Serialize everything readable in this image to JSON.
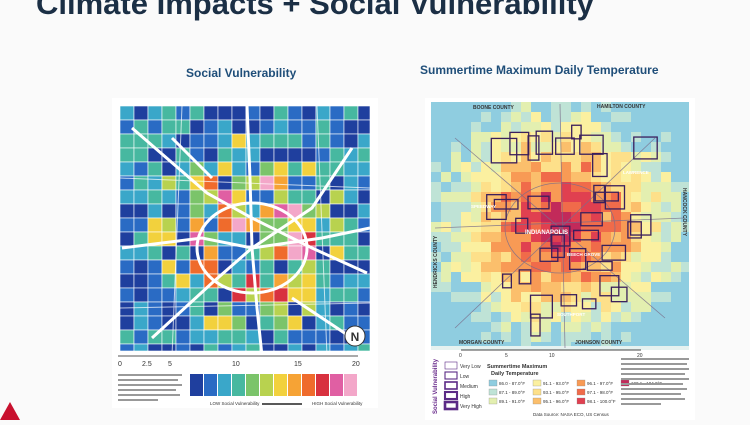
{
  "slide": {
    "title": "Climate Impacts + Social Vulnerability",
    "accent_color": "#c8102e"
  },
  "left_map": {
    "title": "Social Vulnerability",
    "scale_ticks": [
      "0",
      "2.5",
      "5",
      "10",
      "15",
      "20"
    ],
    "legend_low": "LOW Social Vulnerability",
    "legend_high": "HIGH Social Vulnerability",
    "legend_colors": [
      "#1f3f9e",
      "#2a6bc4",
      "#3aa7c9",
      "#47b8a0",
      "#7bc46a",
      "#b8d24f",
      "#f2d13d",
      "#f6a335",
      "#ef6b2c",
      "#d8313f",
      "#e05fa3",
      "#f3a7c9"
    ],
    "compass_icon": "north-arrow-icon"
  },
  "right_map": {
    "title": "Summertime Maximum Daily Temperature",
    "labels": {
      "top_left": "BOONE COUNTY",
      "top_right": "HAMILTON COUNTY",
      "right": "HANCOCK COUNTY",
      "left": "HENDRICKS COUNTY",
      "bottom_left": "MORGAN COUNTY",
      "bottom_right": "JOHNSON COUNTY",
      "city": "INDIANAPOLIS",
      "place1": "SPEEDWAY",
      "place2": "BEECH GROVE",
      "place3": "LAWRENCE",
      "place4": "SOUTHPORT"
    },
    "scale_ticks": [
      "0",
      "5",
      "10",
      "20"
    ],
    "sv_axis_label": "Social Vulnerability",
    "sv_levels": [
      "Very Low",
      "Low",
      "Medium",
      "High",
      "Very High"
    ],
    "legend_title_1": "Summertime Maximum",
    "legend_title_2": "Daily Temperature",
    "temp_ranges": [
      {
        "label": "86.0 - 87.0°F",
        "color": "#8fcde0"
      },
      {
        "label": "87.1 - 89.0°F",
        "color": "#bfe3d6"
      },
      {
        "label": "89.1 - 91.0°F",
        "color": "#e3efb0"
      },
      {
        "label": "91.1 - 93.0°F",
        "color": "#fbf0a0"
      },
      {
        "label": "93.1 - 95.0°F",
        "color": "#fde08a"
      },
      {
        "label": "95.1 - 96.0°F",
        "color": "#fbbf6c"
      },
      {
        "label": "96.1 - 97.0°F",
        "color": "#f89a55"
      },
      {
        "label": "97.1 - 98.0°F",
        "color": "#f06b4a"
      },
      {
        "label": "98.1 - 100.0°F",
        "color": "#e04050"
      },
      {
        "label": "100.1 - 104.0°F",
        "color": "#c22a5a"
      }
    ],
    "source": "Data Source: NASA ECO, US Census"
  }
}
